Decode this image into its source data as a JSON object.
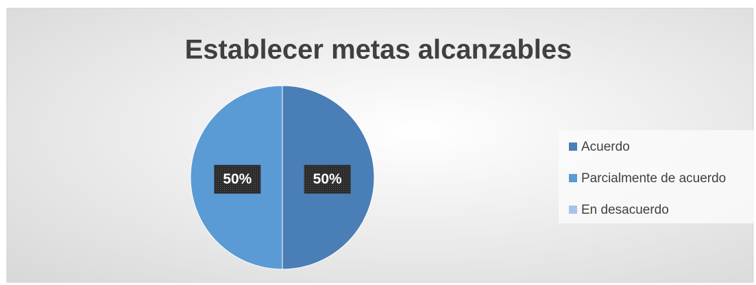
{
  "chart_data": {
    "type": "pie",
    "title": "Establecer metas alcanzables",
    "categories": [
      "Acuerdo",
      "Parcialmente de acuerdo",
      "En desacuerdo"
    ],
    "values": [
      50,
      50,
      0
    ],
    "value_labels": [
      "50%",
      "50%",
      null
    ],
    "colors": [
      "#4a7eb6",
      "#5b9bd5",
      "#a8c4e9"
    ],
    "legend": "right"
  }
}
